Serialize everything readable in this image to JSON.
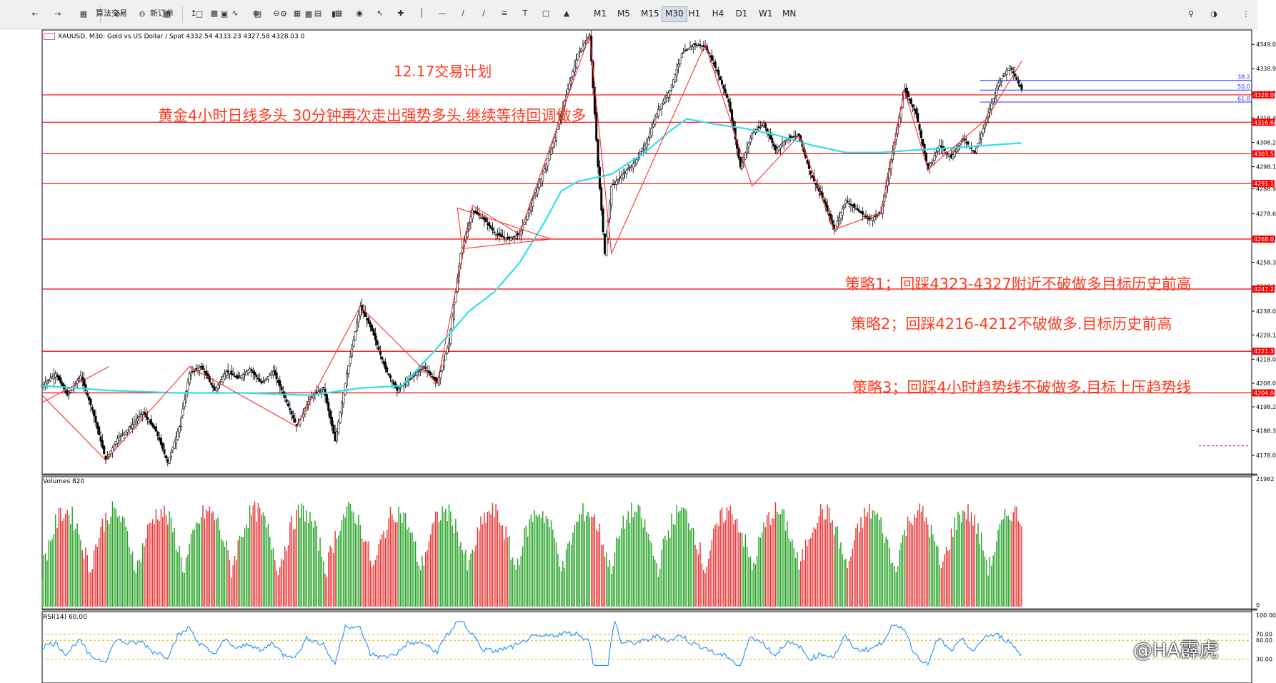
{
  "toolbar": {
    "items": [
      "算法交易",
      "新订单"
    ],
    "timeframes": [
      "M1",
      "M5",
      "M15",
      "M30",
      "H1",
      "H4",
      "D1",
      "W1",
      "MN"
    ],
    "active_timeframe": "M30"
  },
  "chart": {
    "header": "XAUUSD, M30:  Gold vs US Dollar / Spot  4332.54 4333.23 4327.58 4328.03  0",
    "title_plan": "12.17交易计划",
    "subtitle": "黄金4小时日线多头 30分钟再次走出强势多头.继续等待回调做多",
    "strategy1": "策略1；回踩4323-4327附近不破做多目标历史前高",
    "strategy2": "策略2；回踩4216-4212不破做多.目标历史前高",
    "strategy3": "策略3；回踩4小时趋势线不破做多.目标上压趋势线",
    "text_color": "#ff3b1f",
    "price_ticks": [
      "4349.0",
      "4338.9",
      "4328.7",
      "4318.4",
      "4308.2",
      "4298.1",
      "4288.9",
      "4278.6",
      "4268.4",
      "4258.3",
      "4248.2",
      "4238.0",
      "4228.1",
      "4218.0",
      "4208.0",
      "4198.2",
      "4188.3",
      "4178.0"
    ],
    "price_badges": [
      "4328.0",
      "4316.6",
      "4303.5",
      "4291.1",
      "4268.0",
      "4247.2",
      "4221.3",
      "4204.0"
    ],
    "fib_labels": [
      "38.2",
      "50.0",
      "61.8"
    ],
    "bull_color": "#089981",
    "bear_color": "#f23645"
  },
  "volumes": {
    "title": "Volumes 820",
    "ticks": [
      "21982",
      "0"
    ]
  },
  "rsi": {
    "title": "RSI(14) 60.00",
    "ticks": [
      "100.00",
      "70.00",
      "60.00",
      "30.00"
    ]
  },
  "watermark": "@HA霹虎",
  "chart_data": {
    "type": "candlestick",
    "symbol": "XAUUSD",
    "timeframe": "M30",
    "ylim": [
      4170,
      4355
    ],
    "horizontal_levels": [
      4328.0,
      4316.6,
      4303.5,
      4291.1,
      4268.0,
      4247.2,
      4221.3,
      4204.0
    ],
    "price_path": [
      [
        0,
        4207
      ],
      [
        8,
        4212
      ],
      [
        15,
        4203
      ],
      [
        23,
        4211
      ],
      [
        30,
        4197
      ],
      [
        38,
        4176
      ],
      [
        45,
        4185
      ],
      [
        53,
        4190
      ],
      [
        60,
        4196
      ],
      [
        68,
        4188
      ],
      [
        75,
        4175
      ],
      [
        82,
        4190
      ],
      [
        88,
        4212
      ],
      [
        95,
        4215
      ],
      [
        103,
        4205
      ],
      [
        110,
        4213
      ],
      [
        117,
        4210
      ],
      [
        124,
        4214
      ],
      [
        131,
        4208
      ],
      [
        138,
        4213
      ],
      [
        145,
        4202
      ],
      [
        152,
        4190
      ],
      [
        160,
        4202
      ],
      [
        168,
        4206
      ],
      [
        175,
        4184
      ],
      [
        182,
        4212
      ],
      [
        190,
        4240
      ],
      [
        197,
        4230
      ],
      [
        205,
        4214
      ],
      [
        212,
        4205
      ],
      [
        220,
        4210
      ],
      [
        228,
        4215
      ],
      [
        236,
        4208
      ],
      [
        243,
        4225
      ],
      [
        250,
        4262
      ],
      [
        257,
        4280
      ],
      [
        264,
        4276
      ],
      [
        271,
        4270
      ],
      [
        278,
        4268
      ],
      [
        285,
        4270
      ],
      [
        292,
        4282
      ],
      [
        299,
        4295
      ],
      [
        306,
        4310
      ],
      [
        313,
        4328
      ],
      [
        320,
        4345
      ],
      [
        327,
        4353
      ],
      [
        332,
        4298
      ],
      [
        336,
        4262
      ],
      [
        340,
        4290
      ],
      [
        347,
        4295
      ],
      [
        354,
        4300
      ],
      [
        361,
        4308
      ],
      [
        368,
        4322
      ],
      [
        375,
        4330
      ],
      [
        382,
        4345
      ],
      [
        389,
        4349
      ],
      [
        396,
        4348
      ],
      [
        403,
        4338
      ],
      [
        410,
        4325
      ],
      [
        417,
        4298
      ],
      [
        424,
        4312
      ],
      [
        431,
        4316
      ],
      [
        438,
        4305
      ],
      [
        445,
        4310
      ],
      [
        452,
        4311
      ],
      [
        459,
        4295
      ],
      [
        466,
        4285
      ],
      [
        473,
        4272
      ],
      [
        480,
        4284
      ],
      [
        487,
        4280
      ],
      [
        494,
        4276
      ],
      [
        501,
        4279
      ],
      [
        508,
        4305
      ],
      [
        515,
        4330
      ],
      [
        522,
        4320
      ],
      [
        529,
        4297
      ],
      [
        536,
        4307
      ],
      [
        543,
        4302
      ],
      [
        550,
        4310
      ],
      [
        557,
        4304
      ],
      [
        564,
        4318
      ],
      [
        571,
        4333
      ],
      [
        578,
        4340
      ],
      [
        585,
        4330
      ]
    ],
    "moving_average": [
      [
        0,
        4207
      ],
      [
        40,
        4205
      ],
      [
        80,
        4204
      ],
      [
        120,
        4204
      ],
      [
        160,
        4203
      ],
      [
        190,
        4206
      ],
      [
        215,
        4207
      ],
      [
        235,
        4222
      ],
      [
        255,
        4238
      ],
      [
        270,
        4246
      ],
      [
        285,
        4258
      ],
      [
        300,
        4275
      ],
      [
        310,
        4288
      ],
      [
        320,
        4292
      ],
      [
        340,
        4295
      ],
      [
        360,
        4304
      ],
      [
        375,
        4313
      ],
      [
        385,
        4318
      ],
      [
        400,
        4316
      ],
      [
        420,
        4314
      ],
      [
        440,
        4311
      ],
      [
        460,
        4307
      ],
      [
        480,
        4304
      ],
      [
        500,
        4304
      ],
      [
        520,
        4305
      ],
      [
        545,
        4306
      ],
      [
        565,
        4307
      ],
      [
        585,
        4308
      ]
    ],
    "volume_range": [
      0,
      21982
    ],
    "rsi_levels": [
      70,
      60,
      30
    ]
  }
}
